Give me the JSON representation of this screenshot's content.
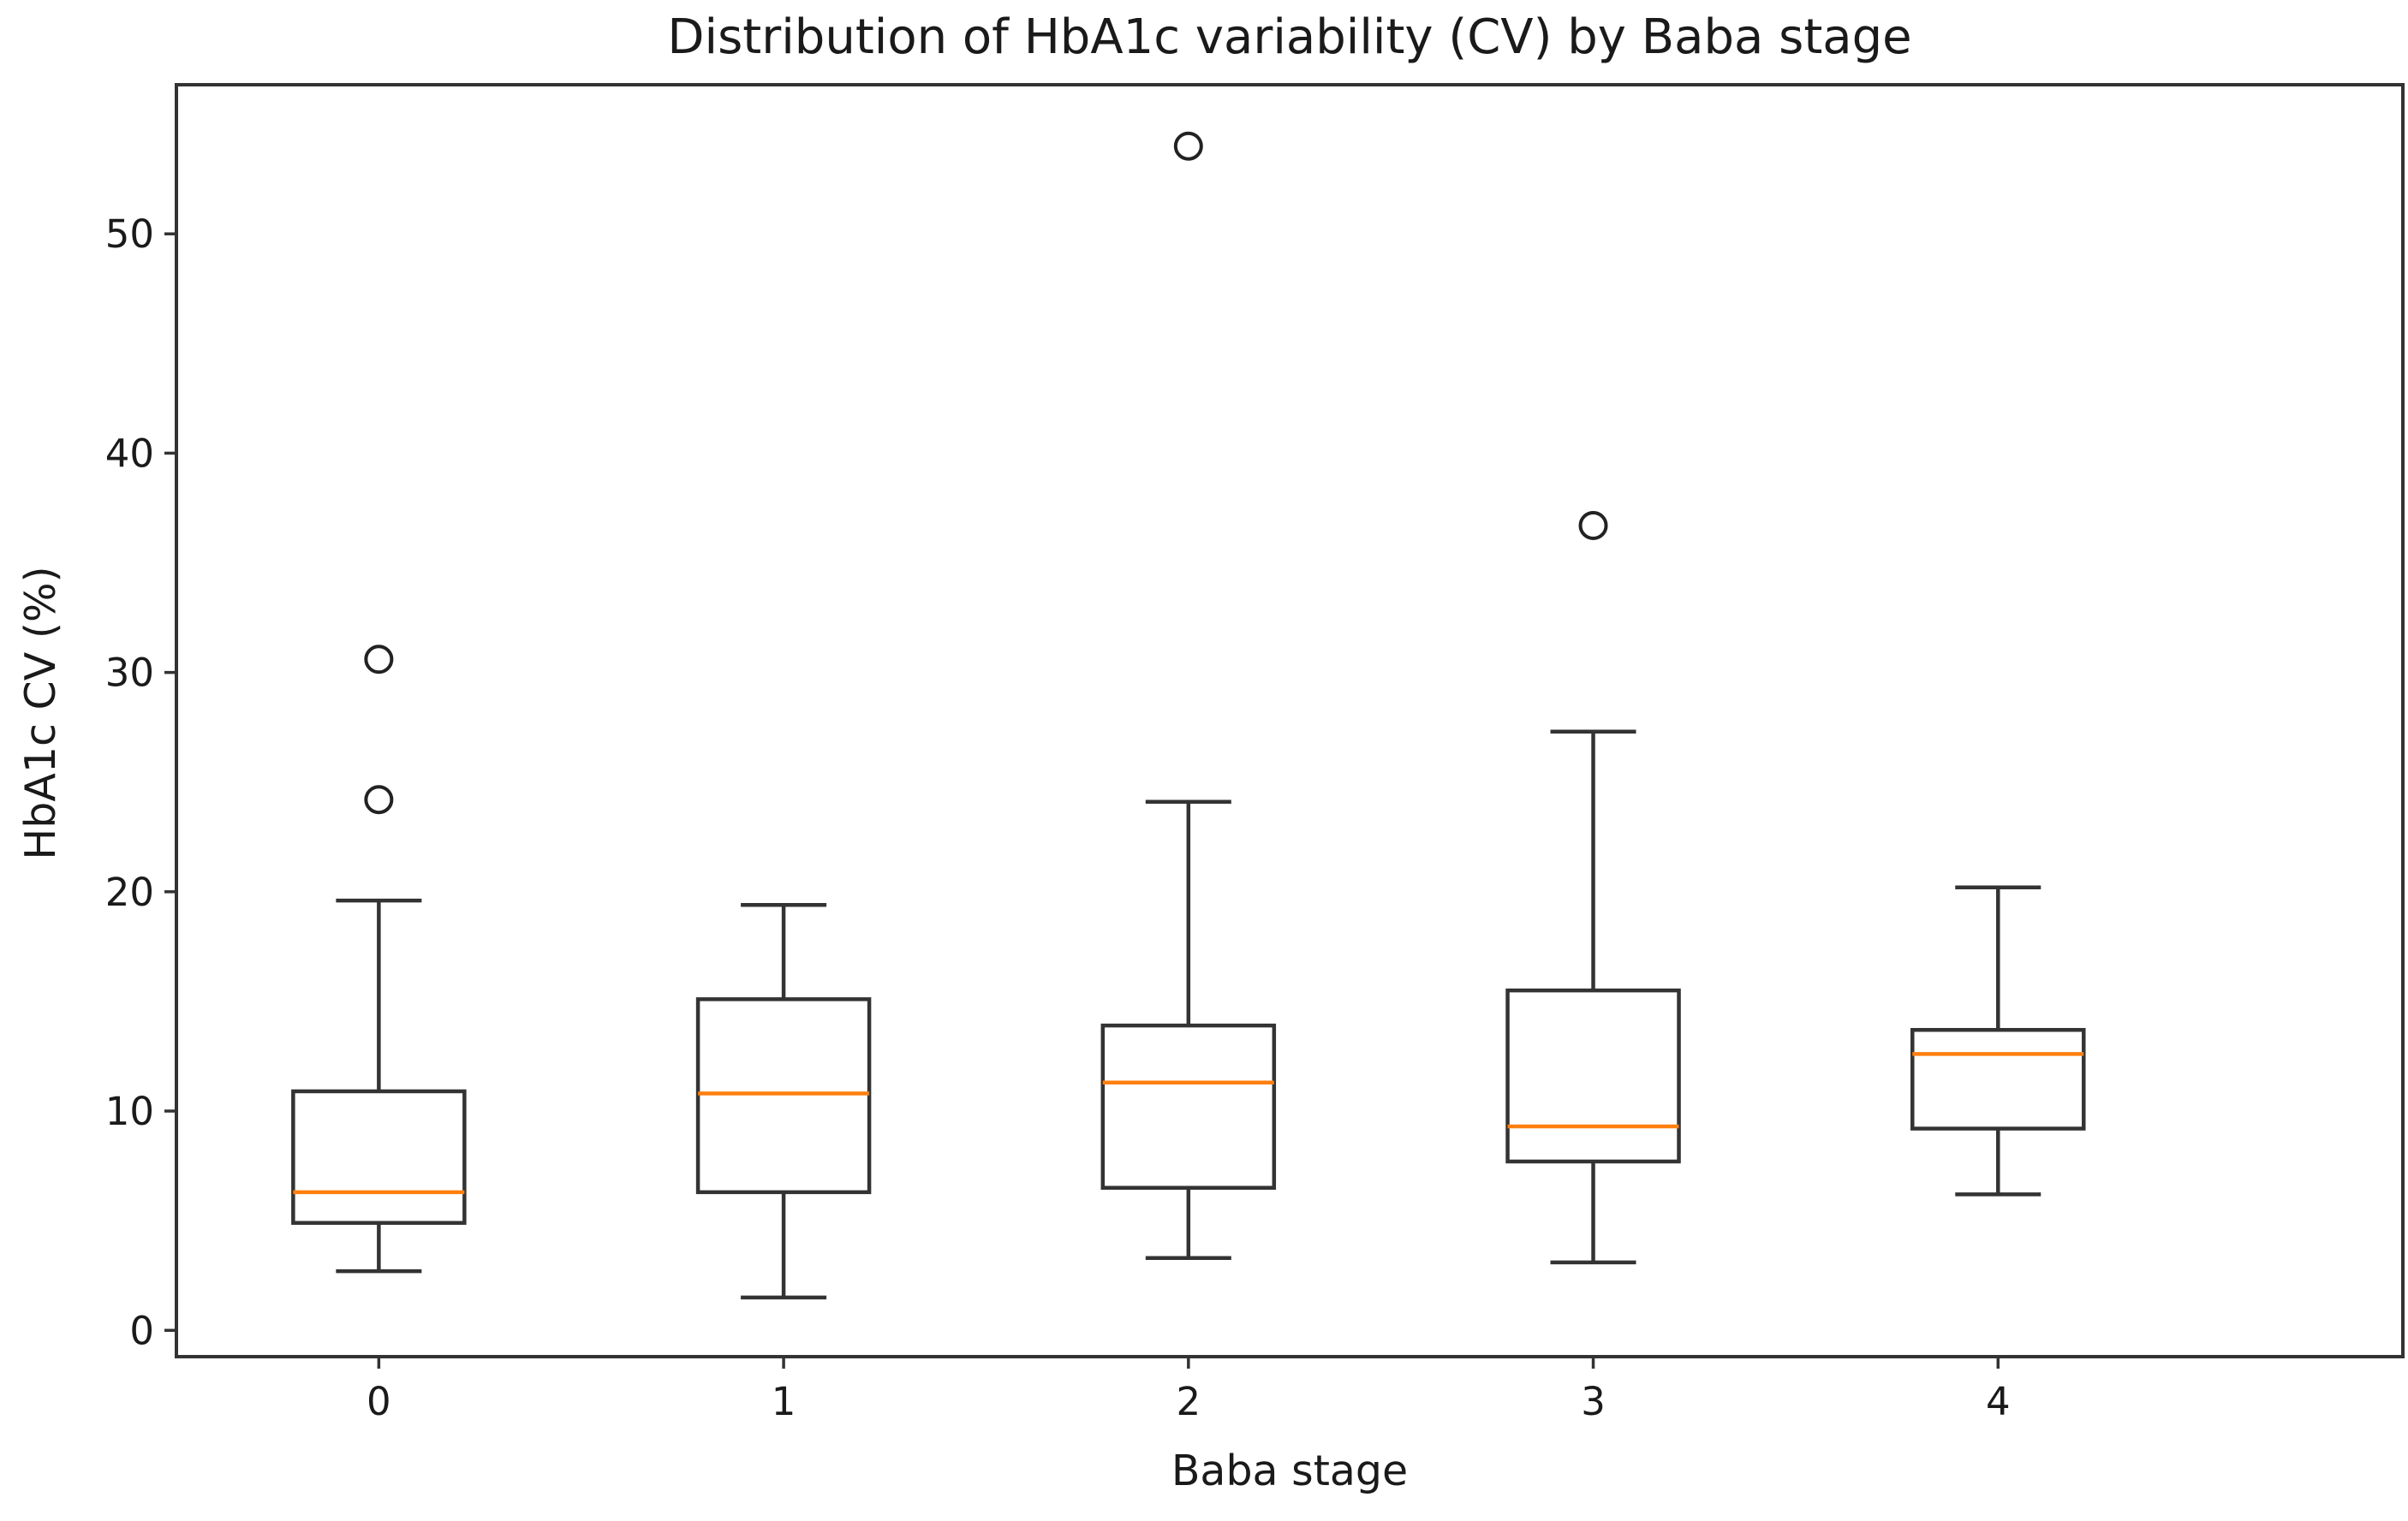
{
  "colors": {
    "median": "#ff7f0e",
    "box": "#333333",
    "flier": "#222222"
  },
  "chart_data": {
    "type": "box",
    "title": "Distribution of HbA1c variability (CV) by Baba stage",
    "xlabel": "Baba stage",
    "ylabel": "HbA1c CV (%)",
    "ylim": [
      -1.2,
      56.8
    ],
    "yticks": [
      0,
      10,
      20,
      30,
      40,
      50
    ],
    "grid": false,
    "legend": "none",
    "categories": [
      "0",
      "1",
      "2",
      "3",
      "4"
    ],
    "boxes": [
      {
        "category": "0",
        "whisker_low": 2.7,
        "q1": 4.9,
        "median": 6.3,
        "q3": 10.9,
        "whisker_high": 19.6,
        "fliers": [
          24.2,
          30.6
        ]
      },
      {
        "category": "1",
        "whisker_low": 1.5,
        "q1": 6.3,
        "median": 10.8,
        "q3": 15.1,
        "whisker_high": 19.4,
        "fliers": []
      },
      {
        "category": "2",
        "whisker_low": 3.3,
        "q1": 6.5,
        "median": 11.3,
        "q3": 13.9,
        "whisker_high": 24.1,
        "fliers": [
          54.0
        ]
      },
      {
        "category": "3",
        "whisker_low": 3.1,
        "q1": 7.7,
        "median": 9.3,
        "q3": 15.5,
        "whisker_high": 27.3,
        "fliers": [
          36.7
        ]
      },
      {
        "category": "4",
        "whisker_low": 6.2,
        "q1": 9.2,
        "median": 12.6,
        "q3": 13.7,
        "whisker_high": 20.2,
        "fliers": []
      }
    ]
  }
}
